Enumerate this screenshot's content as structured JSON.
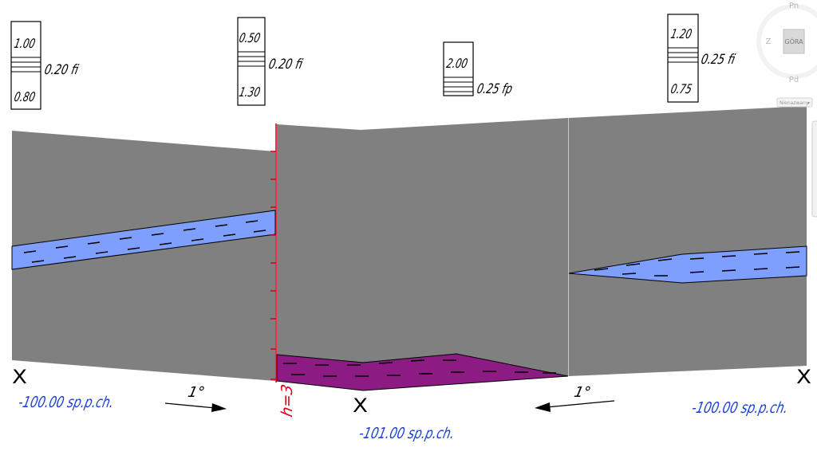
{
  "colors": {
    "rock": "#808080",
    "water": "#7f9ffe",
    "magenta": "#8c1c84",
    "fault": "#e0001b",
    "note": "#1a3fd6",
    "ink": "#000000"
  },
  "legend_boxes": [
    {
      "top": "1.00",
      "bottom": "0.80",
      "label": "0.20 fi"
    },
    {
      "top": "0.50",
      "bottom": "1.30",
      "label": "0.20 fi"
    },
    {
      "top": "2.00",
      "bottom": "",
      "label": "0.25 fp"
    },
    {
      "top": "1.20",
      "bottom": "0.75",
      "label": "0.25 fi"
    }
  ],
  "markers": {
    "left": "X",
    "middle": "X",
    "right": "X"
  },
  "levels": {
    "left": "-100.00 sp.p.ch.",
    "middle": "-101.00 sp.p.ch.",
    "right": "-100.00 sp.p.ch."
  },
  "dips": {
    "left": "1°",
    "right": "1°"
  },
  "fault_label": "h=3",
  "compass": {
    "north": "Pn",
    "west": "Z",
    "south": "Pd",
    "center": "GÓRA",
    "menu": "Nienazwany"
  }
}
